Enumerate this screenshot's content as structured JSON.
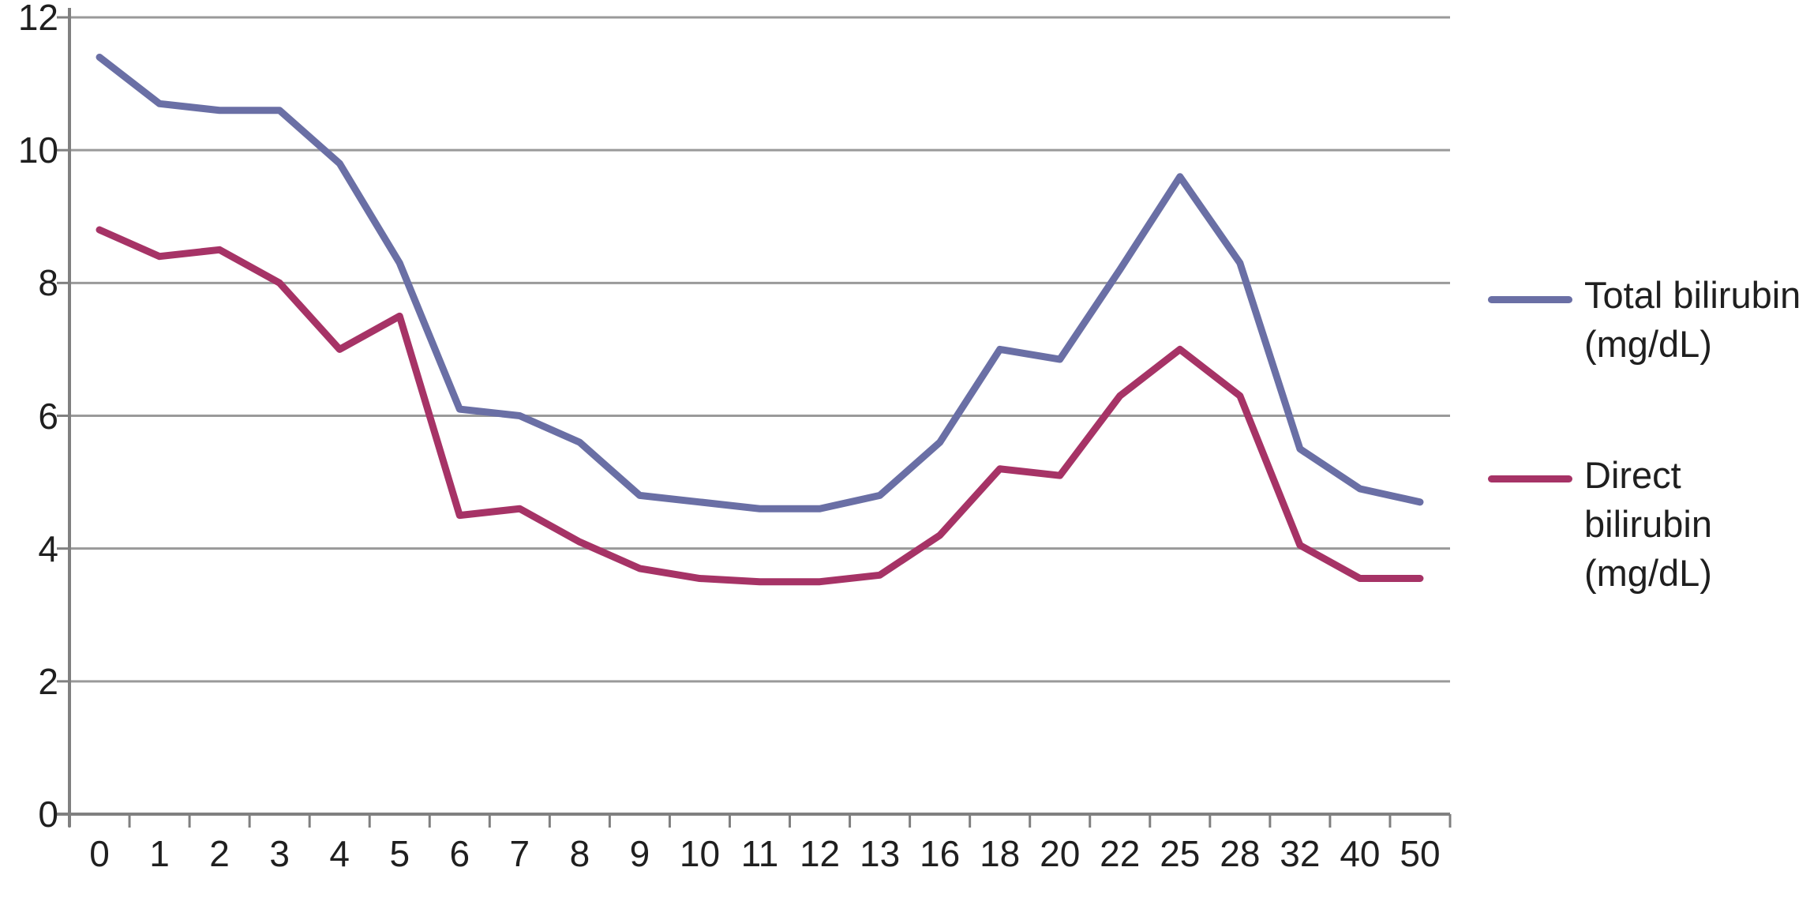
{
  "chart_data": {
    "type": "line",
    "title": "",
    "xlabel": "",
    "ylabel": "",
    "categories": [
      "0",
      "1",
      "2",
      "3",
      "4",
      "5",
      "6",
      "7",
      "8",
      "9",
      "10",
      "11",
      "12",
      "13",
      "16",
      "18",
      "20",
      "22",
      "25",
      "28",
      "32",
      "40",
      "50"
    ],
    "series": [
      {
        "name": "Total bilirubin (mg/dL)",
        "color": "#6A6FA5",
        "values": [
          11.4,
          10.7,
          10.6,
          10.6,
          9.8,
          8.3,
          6.1,
          6.0,
          5.6,
          4.8,
          4.7,
          4.6,
          4.6,
          4.8,
          5.6,
          7.0,
          6.85,
          8.2,
          9.6,
          8.3,
          5.5,
          4.9,
          4.7
        ]
      },
      {
        "name": "Direct bilirubin (mg/dL)",
        "color": "#A63366",
        "values": [
          8.8,
          8.4,
          8.5,
          8.0,
          7.0,
          7.5,
          4.5,
          4.6,
          4.1,
          3.7,
          3.55,
          3.5,
          3.5,
          3.6,
          4.2,
          5.2,
          5.1,
          6.3,
          7.0,
          6.3,
          4.05,
          3.55,
          3.55
        ]
      }
    ],
    "ylim": [
      0,
      12
    ],
    "yticks": [
      0,
      2,
      4,
      6,
      8,
      10,
      12
    ],
    "grid": "horizontal",
    "legend_position": "right",
    "gridline_color": "#9A9A9A",
    "axis_color": "#808080",
    "text_color": "#1F1F1F",
    "background_color": "#FFFFFF"
  }
}
